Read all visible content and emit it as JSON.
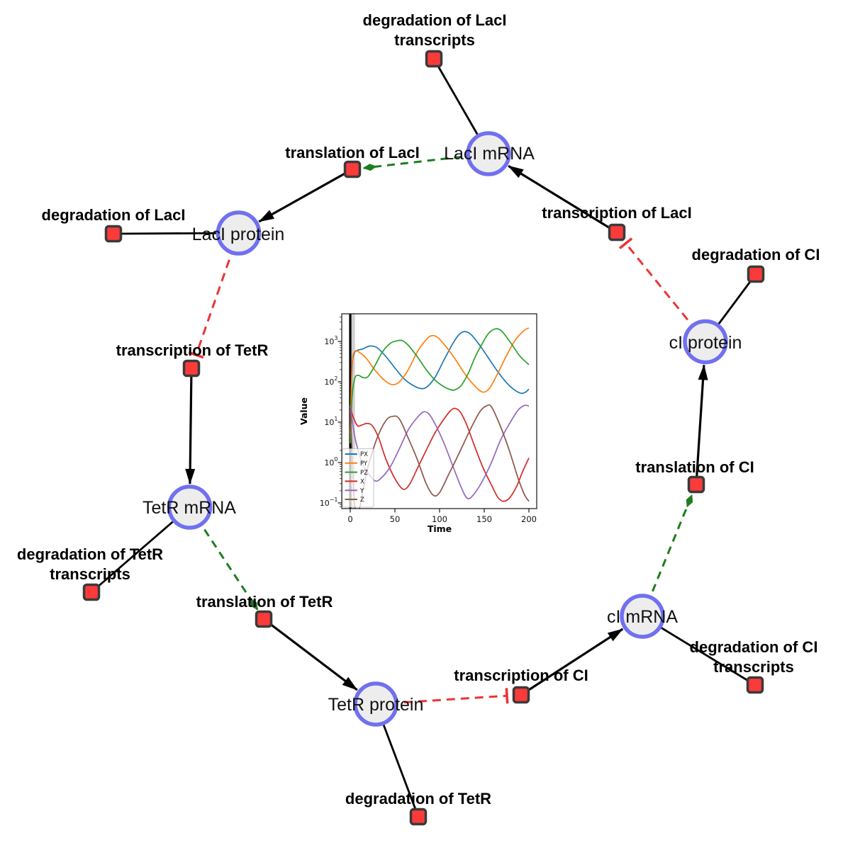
{
  "diagram": {
    "species": [
      {
        "label": "LacI mRNA"
      },
      {
        "label": "LacI protein"
      },
      {
        "label": "cI protein"
      },
      {
        "label": "TetR mRNA"
      },
      {
        "label": "cI mRNA"
      },
      {
        "label": "TetR protein"
      }
    ],
    "reactions": [
      {
        "lines": [
          "degradation of LacI",
          "transcripts"
        ]
      },
      {
        "lines": [
          "translation of LacI"
        ]
      },
      {
        "lines": [
          "transcription of LacI"
        ]
      },
      {
        "lines": [
          "degradation of LacI"
        ]
      },
      {
        "lines": [
          "degradation of CI"
        ]
      },
      {
        "lines": [
          "transcription of TetR"
        ]
      },
      {
        "lines": [
          "translation of CI"
        ]
      },
      {
        "lines": [
          "degradation of TetR",
          "transcripts"
        ]
      },
      {
        "lines": [
          "translation of TetR"
        ]
      },
      {
        "lines": [
          "transcription of CI"
        ]
      },
      {
        "lines": [
          "degradation of CI",
          "transcripts"
        ]
      },
      {
        "lines": [
          "degradation of TetR"
        ]
      }
    ],
    "colors": {
      "species_fill": "#ededed",
      "species_border": "#7070f0",
      "reaction_fill": "#fb3a3a",
      "reaction_border": "#3a3a3a",
      "edge_production": "#000000",
      "edge_catalysis": "#1e7d1e",
      "edge_inhibition": "#ee3333"
    }
  },
  "chart_data": {
    "type": "line",
    "title": "",
    "xlabel": "Time",
    "ylabel": "Value",
    "x_range": [
      0,
      200
    ],
    "y_scale": "log",
    "ylim_exponents": [
      -1.15,
      3.68
    ],
    "grid": false,
    "legend_position": "lower left",
    "vline_at_x": 0,
    "xticks": [
      "0",
      "50",
      "100",
      "150",
      "200"
    ],
    "ytick_exponents": [
      3,
      2,
      1,
      0,
      -1
    ],
    "yticks": [
      {
        "base": "10",
        "exp": "3"
      },
      {
        "base": "10",
        "exp": "2"
      },
      {
        "base": "10",
        "exp": "1"
      },
      {
        "base": "10",
        "exp": "0"
      },
      {
        "base": "10",
        "exp": "−1"
      }
    ],
    "series": [
      {
        "name": "PX",
        "color": "#1f77b4",
        "points": [
          [
            0,
            5
          ],
          [
            2,
            200
          ],
          [
            4,
            480
          ],
          [
            8,
            600
          ],
          [
            14,
            650
          ],
          [
            22,
            770
          ],
          [
            30,
            700
          ],
          [
            40,
            420
          ],
          [
            50,
            220
          ],
          [
            60,
            120
          ],
          [
            70,
            82
          ],
          [
            79,
            68
          ],
          [
            86,
            75
          ],
          [
            95,
            130
          ],
          [
            105,
            350
          ],
          [
            115,
            900
          ],
          [
            122,
            1500
          ],
          [
            128,
            1750
          ],
          [
            135,
            1500
          ],
          [
            145,
            800
          ],
          [
            155,
            380
          ],
          [
            165,
            180
          ],
          [
            175,
            95
          ],
          [
            183,
            65
          ],
          [
            191,
            52
          ],
          [
            196,
            55
          ],
          [
            200,
            66
          ]
        ]
      },
      {
        "name": "PY",
        "color": "#ff7f0e",
        "points": [
          [
            0,
            4
          ],
          [
            2,
            250
          ],
          [
            5,
            560
          ],
          [
            10,
            540
          ],
          [
            18,
            380
          ],
          [
            28,
            190
          ],
          [
            38,
            110
          ],
          [
            47,
            85
          ],
          [
            55,
            100
          ],
          [
            65,
            200
          ],
          [
            75,
            550
          ],
          [
            85,
            1100
          ],
          [
            91,
            1380
          ],
          [
            98,
            1250
          ],
          [
            108,
            700
          ],
          [
            118,
            350
          ],
          [
            128,
            160
          ],
          [
            138,
            85
          ],
          [
            148,
            56
          ],
          [
            156,
            70
          ],
          [
            165,
            160
          ],
          [
            175,
            450
          ],
          [
            185,
            1100
          ],
          [
            195,
            1900
          ],
          [
            200,
            2150
          ]
        ]
      },
      {
        "name": "PZ",
        "color": "#2ca02c",
        "points": [
          [
            0,
            3
          ],
          [
            2,
            40
          ],
          [
            5,
            120
          ],
          [
            9,
            145
          ],
          [
            14,
            128
          ],
          [
            20,
            135
          ],
          [
            28,
            260
          ],
          [
            36,
            550
          ],
          [
            45,
            900
          ],
          [
            52,
            1030
          ],
          [
            58,
            1050
          ],
          [
            65,
            800
          ],
          [
            75,
            420
          ],
          [
            85,
            200
          ],
          [
            95,
            110
          ],
          [
            105,
            75
          ],
          [
            112,
            64
          ],
          [
            117,
            63
          ],
          [
            124,
            80
          ],
          [
            132,
            160
          ],
          [
            140,
            420
          ],
          [
            148,
            900
          ],
          [
            155,
            1600
          ],
          [
            163,
            2050
          ],
          [
            170,
            1750
          ],
          [
            180,
            900
          ],
          [
            190,
            430
          ],
          [
            200,
            265
          ]
        ]
      },
      {
        "name": "X",
        "color": "#d62728",
        "points": [
          [
            0,
            25
          ],
          [
            3,
            14
          ],
          [
            8,
            8.2
          ],
          [
            13,
            8.5
          ],
          [
            19,
            9.3
          ],
          [
            25,
            8
          ],
          [
            32,
            4
          ],
          [
            40,
            1.2
          ],
          [
            50,
            0.4
          ],
          [
            59,
            0.22
          ],
          [
            66,
            0.28
          ],
          [
            75,
            0.7
          ],
          [
            85,
            2
          ],
          [
            95,
            5.5
          ],
          [
            105,
            12
          ],
          [
            112,
            19
          ],
          [
            117,
            22
          ],
          [
            123,
            18
          ],
          [
            130,
            9
          ],
          [
            138,
            3
          ],
          [
            148,
            0.8
          ],
          [
            158,
            0.28
          ],
          [
            165,
            0.14
          ],
          [
            171,
            0.11
          ],
          [
            178,
            0.13
          ],
          [
            186,
            0.25
          ],
          [
            193,
            0.6
          ],
          [
            200,
            1.3
          ]
        ]
      },
      {
        "name": "Y",
        "color": "#9467bd",
        "points": [
          [
            0,
            25
          ],
          [
            4,
            6
          ],
          [
            8,
            2.3
          ],
          [
            14,
            0.9
          ],
          [
            20,
            0.55
          ],
          [
            28,
            0.35
          ],
          [
            35,
            0.42
          ],
          [
            45,
            0.8
          ],
          [
            55,
            2.2
          ],
          [
            65,
            6.5
          ],
          [
            75,
            13
          ],
          [
            82,
            18
          ],
          [
            88,
            16
          ],
          [
            95,
            9
          ],
          [
            105,
            3
          ],
          [
            115,
            0.8
          ],
          [
            124,
            0.25
          ],
          [
            131,
            0.13
          ],
          [
            138,
            0.16
          ],
          [
            148,
            0.35
          ],
          [
            158,
            1
          ],
          [
            168,
            3.5
          ],
          [
            178,
            9
          ],
          [
            188,
            20
          ],
          [
            195,
            26
          ],
          [
            200,
            25
          ]
        ]
      },
      {
        "name": "Z",
        "color": "#8c564b",
        "points": [
          [
            0,
            20
          ],
          [
            2,
            2
          ],
          [
            5,
            0.09
          ],
          [
            10,
            0.07
          ],
          [
            15,
            0.25
          ],
          [
            20,
            0.8
          ],
          [
            30,
            4
          ],
          [
            40,
            11
          ],
          [
            48,
            14
          ],
          [
            55,
            12
          ],
          [
            65,
            4
          ],
          [
            75,
            1.2
          ],
          [
            85,
            0.3
          ],
          [
            93,
            0.155
          ],
          [
            100,
            0.18
          ],
          [
            110,
            0.5
          ],
          [
            120,
            1.4
          ],
          [
            135,
            7
          ],
          [
            145,
            18
          ],
          [
            152,
            25
          ],
          [
            158,
            24
          ],
          [
            168,
            8
          ],
          [
            178,
            2
          ],
          [
            188,
            0.4
          ],
          [
            195,
            0.16
          ],
          [
            200,
            0.11
          ]
        ]
      }
    ]
  }
}
